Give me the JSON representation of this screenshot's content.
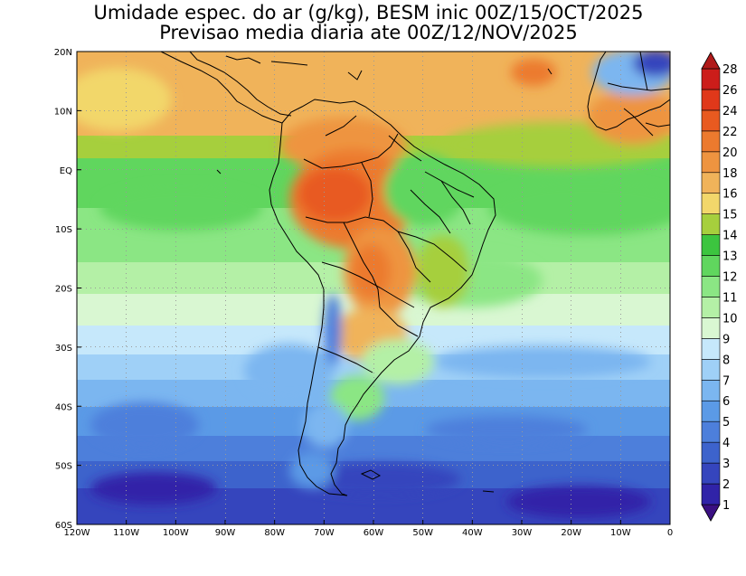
{
  "title": {
    "line1": "Umidade espec. do ar (g/kg), BESM inic 00Z/15/OCT/2025",
    "line2": "Previsao media diaria ate 00Z/12/NOV/2025"
  },
  "map": {
    "lon_range": [
      -120,
      0
    ],
    "lat_range": [
      -60,
      20
    ],
    "lat_ticks": [
      "20N",
      "10N",
      "EQ",
      "10S",
      "20S",
      "30S",
      "40S",
      "50S",
      "60S"
    ],
    "lat_tick_values": [
      20,
      10,
      0,
      -10,
      -20,
      -30,
      -40,
      -50,
      -60
    ],
    "lon_ticks": [
      "120W",
      "110W",
      "100W",
      "90W",
      "80W",
      "70W",
      "60W",
      "50W",
      "40W",
      "30W",
      "20W",
      "10W",
      "0"
    ],
    "lon_tick_values": [
      -120,
      -110,
      -100,
      -90,
      -80,
      -70,
      -60,
      -50,
      -40,
      -30,
      -20,
      -10,
      0
    ],
    "gridlines": "dotted"
  },
  "colorbar": {
    "labels": [
      "1",
      "2",
      "3",
      "4",
      "5",
      "6",
      "7",
      "8",
      "9",
      "10",
      "11",
      "12",
      "13",
      "14",
      "15",
      "16",
      "18",
      "20",
      "22",
      "24",
      "26",
      "28"
    ],
    "colors": [
      "#3a0f82",
      "#3023a8",
      "#3545bd",
      "#3d63cc",
      "#4d7fdb",
      "#5b9ae6",
      "#7bb6f0",
      "#9fd0f7",
      "#c6e8fb",
      "#d9f7d2",
      "#b4f0a6",
      "#8be684",
      "#60d65e",
      "#3cc53f",
      "#a6cf3d",
      "#f2d76b",
      "#f0b35a",
      "#ee9440",
      "#ec7a2e",
      "#e85a20",
      "#e0381a",
      "#cc1d1a",
      "#b01a1a"
    ]
  }
}
